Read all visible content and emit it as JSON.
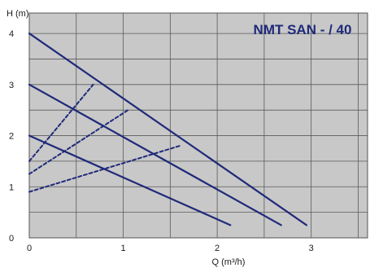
{
  "chart_data": {
    "type": "line",
    "title": "NMT SAN - / 40",
    "xlabel": "Q (m³/h)",
    "ylabel": "H (m)",
    "xlim": [
      0,
      3.6
    ],
    "ylim": [
      0,
      4.4
    ],
    "x_ticks": [
      "0",
      "1",
      "2",
      "3"
    ],
    "y_ticks": [
      "0",
      "1",
      "2",
      "3",
      "4"
    ],
    "grid": true,
    "background": "#c8c8c8",
    "line_color": "#1f2a7a",
    "title_color": "#1f2a7a",
    "series": [
      {
        "style": "solid",
        "x": [
          0,
          2.95
        ],
        "y": [
          4.0,
          0.25
        ]
      },
      {
        "style": "solid",
        "x": [
          0,
          2.68
        ],
        "y": [
          3.0,
          0.25
        ]
      },
      {
        "style": "solid",
        "x": [
          0,
          2.14
        ],
        "y": [
          2.0,
          0.25
        ]
      },
      {
        "style": "dashed",
        "x": [
          0,
          0.68
        ],
        "y": [
          1.5,
          3.0
        ]
      },
      {
        "style": "dashed",
        "x": [
          0,
          1.05
        ],
        "y": [
          1.25,
          2.5
        ]
      },
      {
        "style": "dashed",
        "x": [
          0,
          1.6
        ],
        "y": [
          0.9,
          1.8
        ]
      }
    ]
  }
}
